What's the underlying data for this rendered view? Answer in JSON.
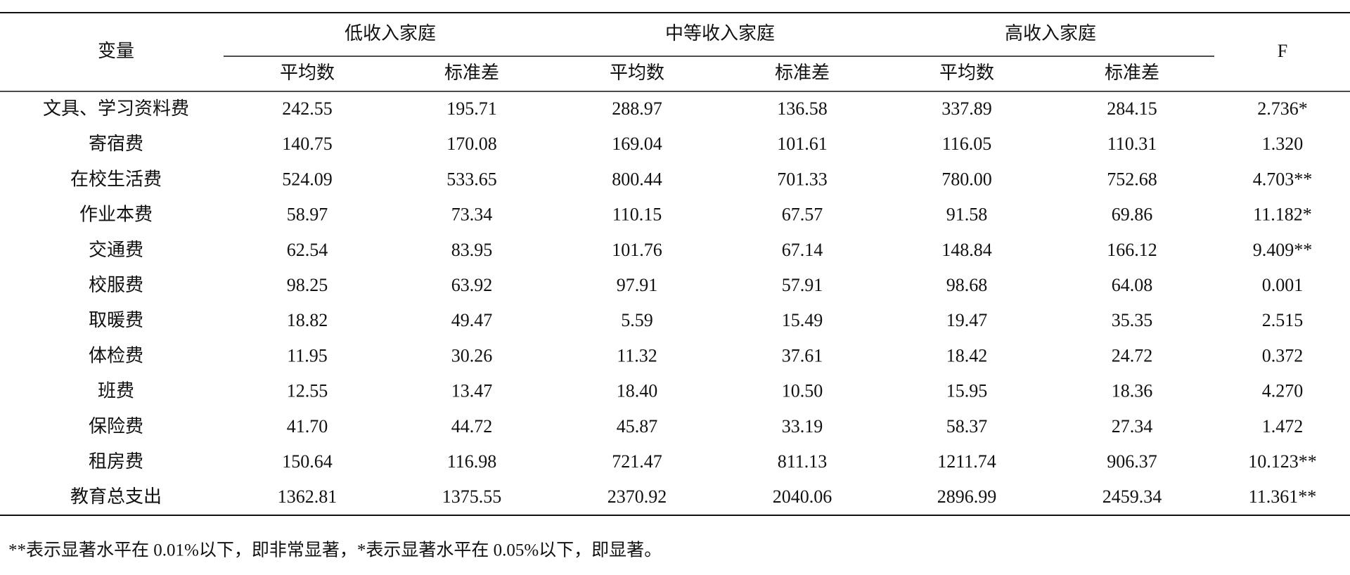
{
  "table": {
    "header": {
      "variable": "变量",
      "groups": [
        "低收入家庭",
        "中等收入家庭",
        "高收入家庭"
      ],
      "sub": [
        "平均数",
        "标准差",
        "平均数",
        "标准差",
        "平均数",
        "标准差"
      ],
      "f": "F"
    },
    "rows": [
      {
        "label": "文具、学习资料费",
        "values": [
          "242.55",
          "195.71",
          "288.97",
          "136.58",
          "337.89",
          "284.15",
          "2.736*"
        ]
      },
      {
        "label": "寄宿费",
        "values": [
          "140.75",
          "170.08",
          "169.04",
          "101.61",
          "116.05",
          "110.31",
          "1.320"
        ]
      },
      {
        "label": "在校生活费",
        "values": [
          "524.09",
          "533.65",
          "800.44",
          "701.33",
          "780.00",
          "752.68",
          "4.703**"
        ]
      },
      {
        "label": "作业本费",
        "values": [
          "58.97",
          "73.34",
          "110.15",
          "67.57",
          "91.58",
          "69.86",
          "11.182*"
        ]
      },
      {
        "label": "交通费",
        "values": [
          "62.54",
          "83.95",
          "101.76",
          "67.14",
          "148.84",
          "166.12",
          "9.409**"
        ]
      },
      {
        "label": "校服费",
        "values": [
          "98.25",
          "63.92",
          "97.91",
          "57.91",
          "98.68",
          "64.08",
          "0.001"
        ]
      },
      {
        "label": "取暖费",
        "values": [
          "18.82",
          "49.47",
          "5.59",
          "15.49",
          "19.47",
          "35.35",
          "2.515"
        ]
      },
      {
        "label": "体检费",
        "values": [
          "11.95",
          "30.26",
          "11.32",
          "37.61",
          "18.42",
          "24.72",
          "0.372"
        ]
      },
      {
        "label": "班费",
        "values": [
          "12.55",
          "13.47",
          "18.40",
          "10.50",
          "15.95",
          "18.36",
          "4.270"
        ]
      },
      {
        "label": "保险费",
        "values": [
          "41.70",
          "44.72",
          "45.87",
          "33.19",
          "58.37",
          "27.34",
          "1.472"
        ]
      },
      {
        "label": "租房费",
        "values": [
          "150.64",
          "116.98",
          "721.47",
          "811.13",
          "1211.74",
          "906.37",
          "10.123**"
        ]
      },
      {
        "label": "教育总支出",
        "values": [
          "1362.81",
          "1375.55",
          "2370.92",
          "2040.06",
          "2896.99",
          "2459.34",
          "11.361**"
        ]
      }
    ]
  },
  "footnote": "**表示显著水平在 0.01%以下，即非常显著，*表示显著水平在 0.05%以下，即显著。"
}
